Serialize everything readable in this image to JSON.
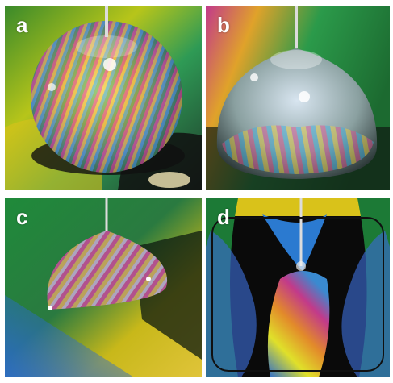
{
  "figure": {
    "panels": [
      {
        "label": "a"
      },
      {
        "label": "b"
      },
      {
        "label": "c"
      },
      {
        "label": "d"
      }
    ]
  },
  "colors": {
    "green": "#1e8a3a",
    "yellow": "#e8d21a",
    "magenta": "#c23a8a",
    "blue": "#2a6ad0",
    "black": "#0a0a0a"
  }
}
